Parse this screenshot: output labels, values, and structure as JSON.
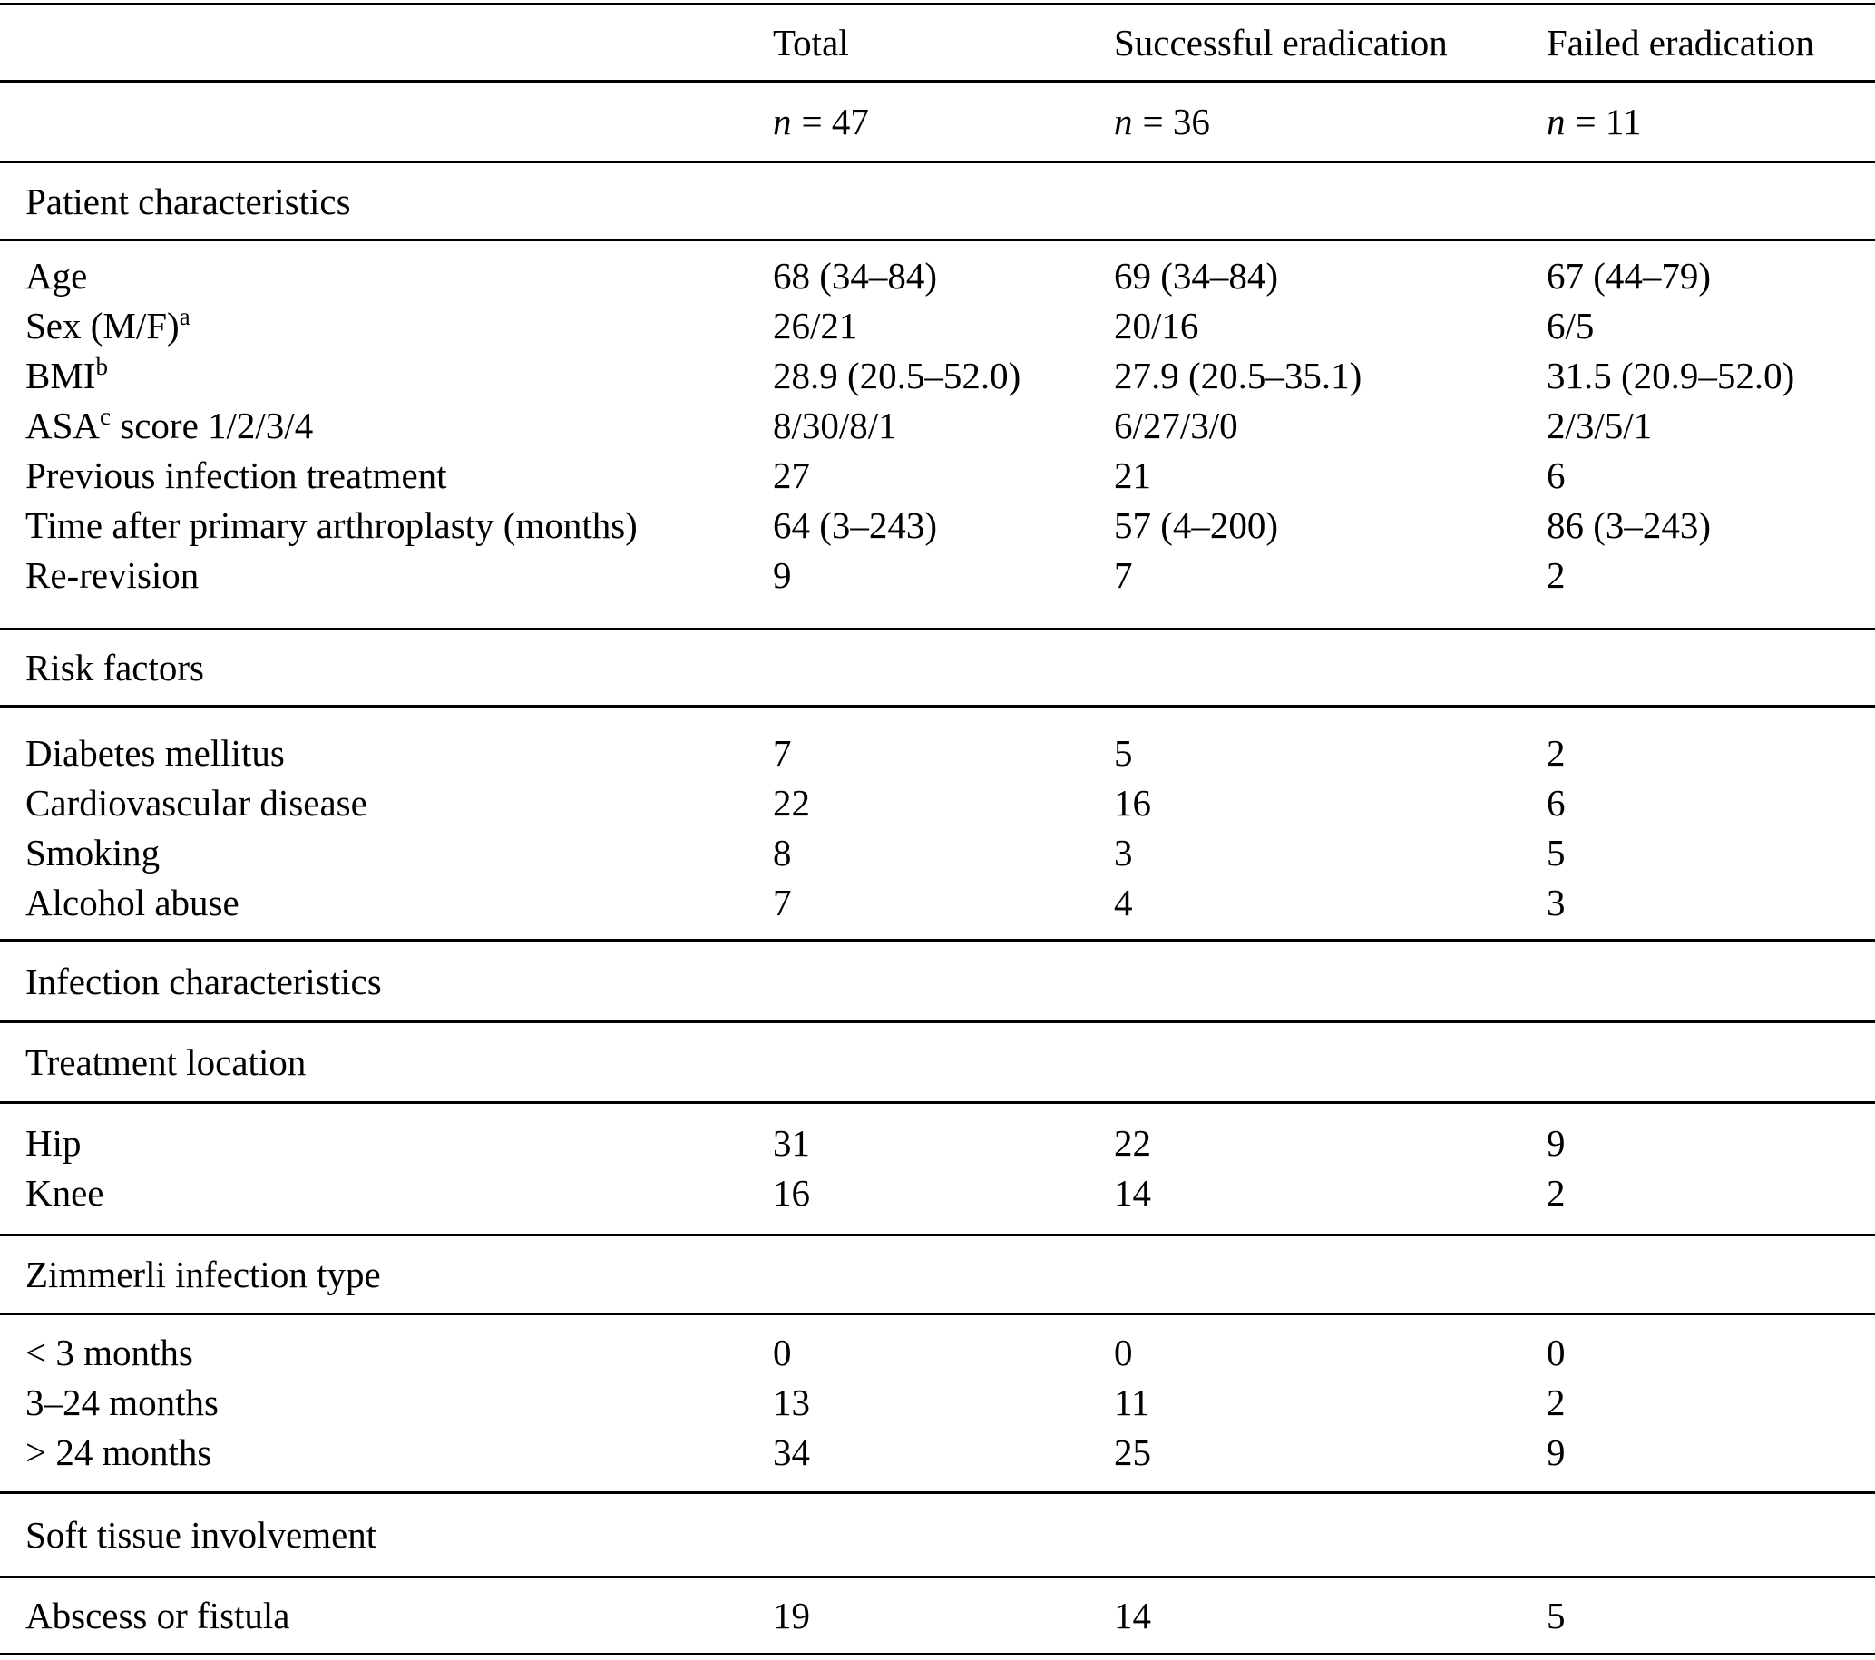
{
  "header": {
    "total": "Total",
    "successful": "Successful eradication",
    "failed": "Failed eradication"
  },
  "counts": {
    "n_symbol": "n",
    "total": "= 47",
    "successful": "= 36",
    "failed": "= 11"
  },
  "sections": {
    "patient": "Patient characteristics",
    "risk": "Risk factors",
    "infection": "Infection characteristics",
    "location": "Treatment location",
    "zimmerli": "Zimmerli infection type",
    "soft_tissue": "Soft tissue involvement"
  },
  "rows": {
    "age": {
      "label": "Age",
      "total": "68 (34–84)",
      "successful": "69 (34–84)",
      "failed": "67 (44–79)"
    },
    "sex": {
      "label": "Sex (M/F)",
      "sup": "a",
      "total": "26/21",
      "successful": "20/16",
      "failed": "6/5"
    },
    "bmi": {
      "label": "BMI",
      "sup": "b",
      "total": "28.9 (20.5–52.0)",
      "successful": "27.9 (20.5–35.1)",
      "failed": "31.5 (20.9–52.0)"
    },
    "asa": {
      "label": "ASA",
      "sup": "c",
      "label2": " score 1/2/3/4",
      "total": "8/30/8/1",
      "successful": "6/27/3/0",
      "failed": "2/3/5/1"
    },
    "previous_treatment": {
      "label": "Previous infection treatment",
      "total": "27",
      "successful": "21",
      "failed": "6"
    },
    "time_after": {
      "label": "Time after primary arthroplasty (months)",
      "total": "64 (3–243)",
      "successful": "57 (4–200)",
      "failed": "86 (3–243)"
    },
    "re_revision": {
      "label": "Re-revision",
      "total": "9",
      "successful": "7",
      "failed": "2"
    },
    "diabetes": {
      "label": "Diabetes mellitus",
      "total": "7",
      "successful": "5",
      "failed": "2"
    },
    "cardiovascular": {
      "label": "Cardiovascular disease",
      "total": "22",
      "successful": "16",
      "failed": "6"
    },
    "smoking": {
      "label": "Smoking",
      "total": "8",
      "successful": "3",
      "failed": "5"
    },
    "alcohol": {
      "label": "Alcohol abuse",
      "total": "7",
      "successful": "4",
      "failed": "3"
    },
    "hip": {
      "label": "Hip",
      "total": "31",
      "successful": "22",
      "failed": "9"
    },
    "knee": {
      "label": "Knee",
      "total": "16",
      "successful": "14",
      "failed": "2"
    },
    "lt_3_months": {
      "label": "< 3 months",
      "total": "0",
      "successful": "0",
      "failed": "0"
    },
    "m_3_24_months": {
      "label": "3–24 months",
      "total": "13",
      "successful": "11",
      "failed": "2"
    },
    "gt_24_months": {
      "label": "> 24 months",
      "total": "34",
      "successful": "25",
      "failed": "9"
    },
    "abscess": {
      "label": "Abscess or fistula",
      "total": "19",
      "successful": "14",
      "failed": "5"
    }
  }
}
